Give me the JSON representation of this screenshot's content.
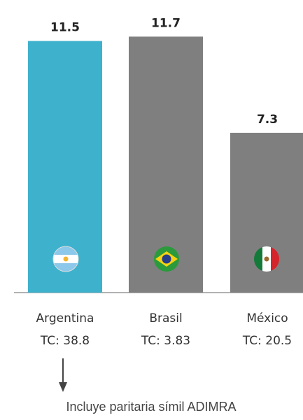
{
  "chart_data": {
    "type": "bar",
    "categories": [
      "Argentina",
      "Brasil",
      "México"
    ],
    "sublabels": [
      "TC: 38.8",
      "TC: 3.83",
      "TC: 20.5"
    ],
    "values": [
      11.5,
      11.7,
      7.3
    ],
    "colors": [
      "#3eb1cd",
      "#7f7f7f",
      "#7f7f7f"
    ],
    "annotation": "Incluye paritaria símil ADIMRA"
  }
}
